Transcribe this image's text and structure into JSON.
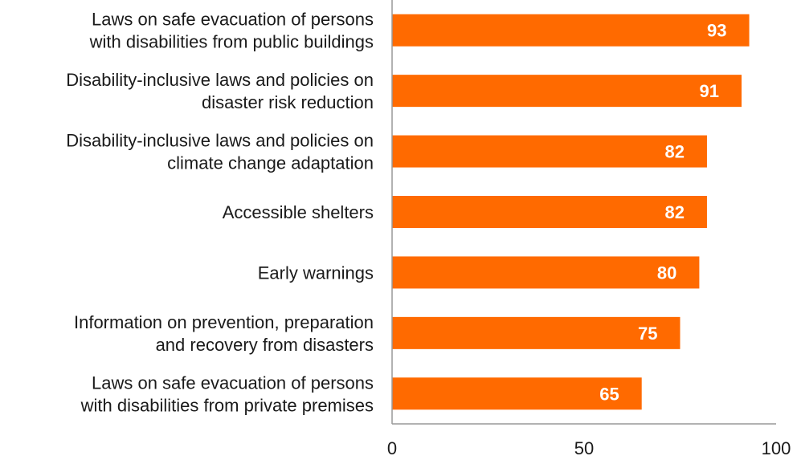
{
  "chart_data": {
    "type": "bar",
    "orientation": "horizontal",
    "title": "",
    "xlabel": "",
    "ylabel": "",
    "xlim": [
      0,
      100
    ],
    "xticks": [
      0,
      50,
      100
    ],
    "grid": false,
    "bar_color": "#ff6a00",
    "axis_color": "#999999",
    "categories": [
      [
        "Laws on safe evacuation of persons",
        "with disabilities from public buildings"
      ],
      [
        "Disability-inclusive laws and policies on",
        "disaster risk reduction"
      ],
      [
        "Disability-inclusive laws and policies on",
        "climate change adaptation"
      ],
      [
        "Accessible shelters"
      ],
      [
        "Early warnings"
      ],
      [
        "Information on prevention, preparation",
        "and recovery from disasters"
      ],
      [
        "Laws on safe evacuation of persons",
        "with disabilities from private premises"
      ]
    ],
    "values": [
      93,
      91,
      82,
      82,
      80,
      75,
      65
    ]
  }
}
